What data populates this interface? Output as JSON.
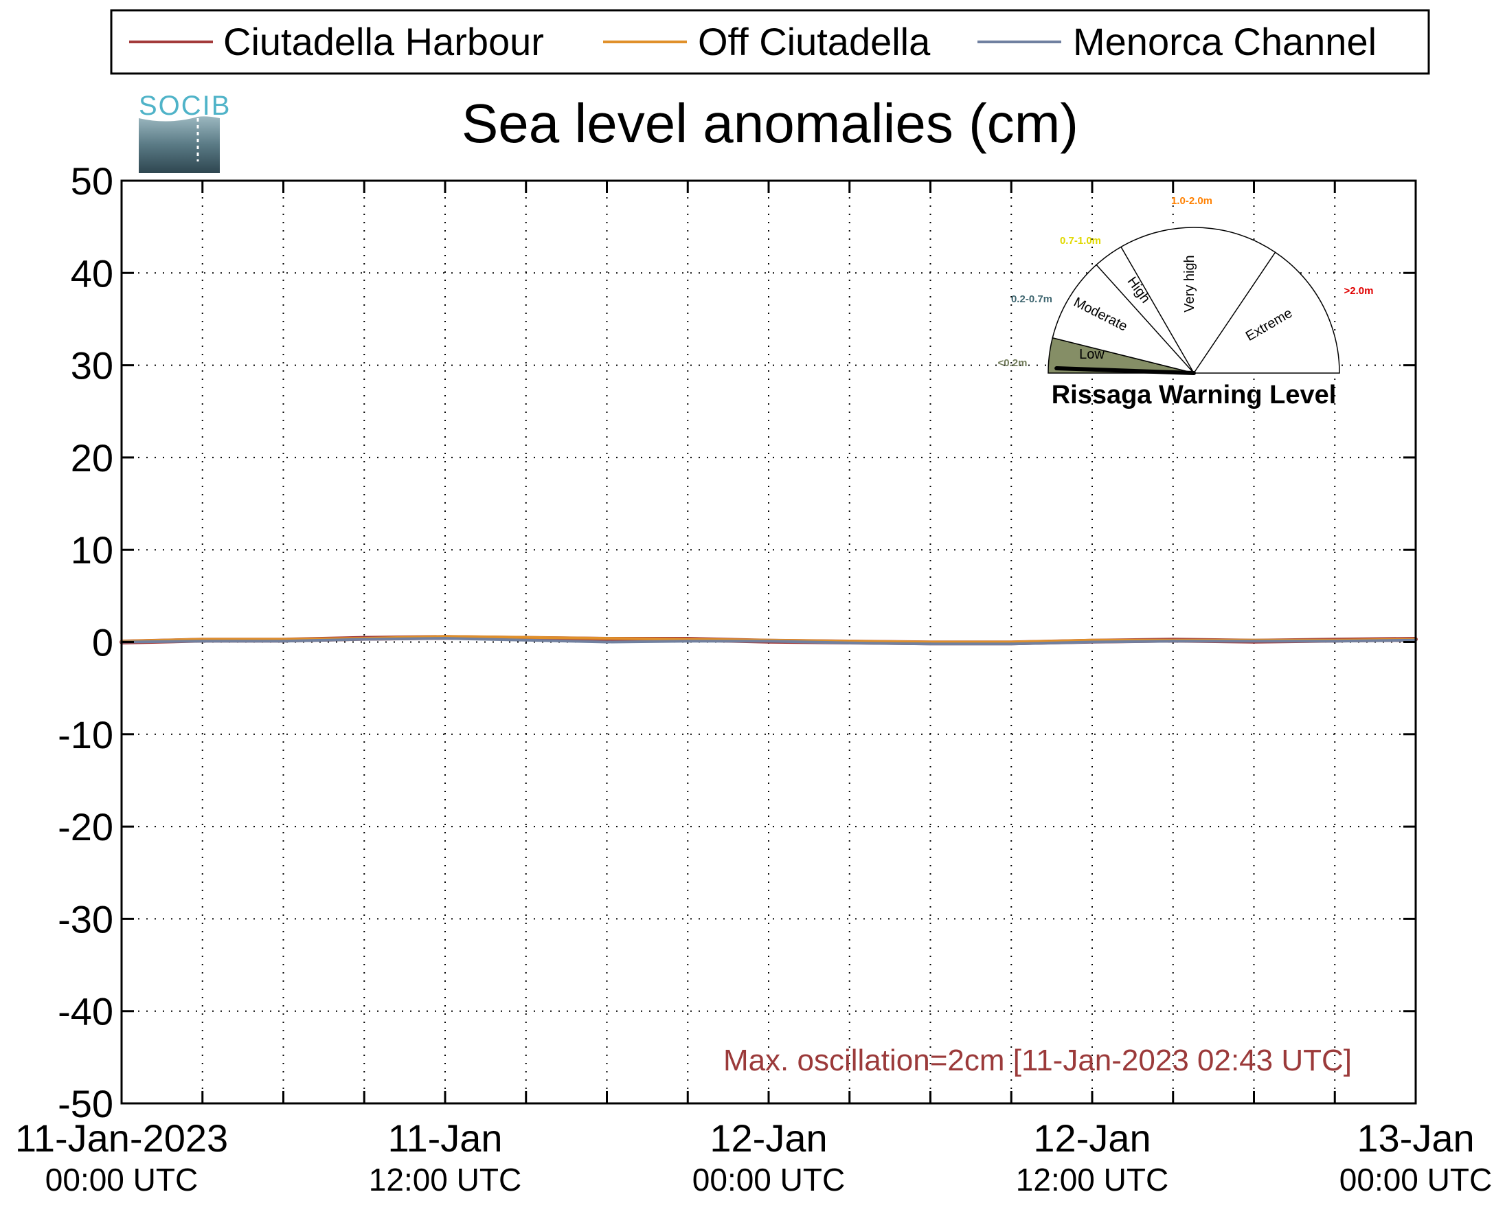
{
  "chart_data": {
    "type": "line",
    "title": "Sea level anomalies (cm)",
    "logo_text": "SOCIB",
    "xlabel": "",
    "ylabel": "",
    "ylim": [
      -50,
      50
    ],
    "yticks": [
      50,
      40,
      30,
      20,
      10,
      0,
      -10,
      -20,
      -30,
      -40,
      -50
    ],
    "xlim": [
      "2023-01-11T00:00Z",
      "2023-01-13T00:00Z"
    ],
    "xtick_labels": [
      {
        "date": "2023-01-11T00:00Z",
        "line1": "11-Jan-2023",
        "line2": "00:00 UTC"
      },
      {
        "date": "2023-01-11T12:00Z",
        "line1": "11-Jan",
        "line2": "12:00 UTC"
      },
      {
        "date": "2023-01-12T00:00Z",
        "line1": "12-Jan",
        "line2": "00:00 UTC"
      },
      {
        "date": "2023-01-12T12:00Z",
        "line1": "12-Jan",
        "line2": "12:00 UTC"
      },
      {
        "date": "2023-01-13T00:00Z",
        "line1": "13-Jan",
        "line2": "00:00 UTC"
      }
    ],
    "grid": true,
    "legend_position": "top",
    "series": [
      {
        "name": "Ciutadella Harbour",
        "color": "#a33a3a",
        "x": [
          "2023-01-11T00:00Z",
          "2023-01-11T03:00Z",
          "2023-01-11T06:00Z",
          "2023-01-11T09:00Z",
          "2023-01-11T12:00Z",
          "2023-01-11T15:00Z",
          "2023-01-11T18:00Z",
          "2023-01-11T21:00Z",
          "2023-01-12T00:00Z",
          "2023-01-12T03:00Z",
          "2023-01-12T06:00Z",
          "2023-01-12T09:00Z",
          "2023-01-12T12:00Z",
          "2023-01-12T15:00Z",
          "2023-01-12T18:00Z",
          "2023-01-12T21:00Z",
          "2023-01-13T00:00Z"
        ],
        "y": [
          0.0,
          0.2,
          0.2,
          0.4,
          0.5,
          0.4,
          0.3,
          0.3,
          0.1,
          0.0,
          -0.1,
          -0.1,
          0.1,
          0.2,
          0.1,
          0.2,
          0.3
        ]
      },
      {
        "name": "Off Ciutadella",
        "color": "#e0902a",
        "x": [
          "2023-01-11T00:00Z",
          "2023-01-11T03:00Z",
          "2023-01-11T06:00Z",
          "2023-01-11T09:00Z",
          "2023-01-11T12:00Z",
          "2023-01-11T15:00Z",
          "2023-01-11T18:00Z",
          "2023-01-11T21:00Z",
          "2023-01-12T00:00Z",
          "2023-01-12T03:00Z",
          "2023-01-12T06:00Z",
          "2023-01-12T09:00Z",
          "2023-01-12T12:00Z",
          "2023-01-12T15:00Z",
          "2023-01-12T18:00Z",
          "2023-01-12T21:00Z",
          "2023-01-13T00:00Z"
        ],
        "y": [
          0.1,
          0.3,
          0.3,
          0.4,
          0.6,
          0.5,
          0.4,
          0.3,
          0.2,
          0.1,
          0.0,
          0.0,
          0.2,
          0.2,
          0.2,
          0.2,
          0.3
        ]
      },
      {
        "name": "Menorca Channel",
        "color": "#7080a0",
        "x": [
          "2023-01-11T00:00Z",
          "2023-01-11T03:00Z",
          "2023-01-11T06:00Z",
          "2023-01-11T09:00Z",
          "2023-01-11T12:00Z",
          "2023-01-11T15:00Z",
          "2023-01-11T18:00Z",
          "2023-01-11T21:00Z",
          "2023-01-12T00:00Z",
          "2023-01-12T03:00Z",
          "2023-01-12T06:00Z",
          "2023-01-12T09:00Z",
          "2023-01-12T12:00Z",
          "2023-01-12T15:00Z",
          "2023-01-12T18:00Z",
          "2023-01-12T21:00Z",
          "2023-01-13T00:00Z"
        ],
        "y": [
          0.0,
          0.1,
          0.1,
          0.3,
          0.4,
          0.2,
          0.0,
          0.1,
          0.1,
          -0.1,
          -0.2,
          -0.2,
          0.0,
          0.1,
          0.1,
          0.1,
          0.2
        ]
      }
    ],
    "annotation": {
      "text": "Max. oscillation=2cm [11-Jan-2023 02:43 UTC]",
      "color": "#9b3a3a"
    },
    "gauge": {
      "title": "Rissaga Warning Level",
      "current_level": "Low",
      "sectors": [
        {
          "label": "Low",
          "range": "<0.2m",
          "range_color": "#707a58",
          "fill": "#858e66"
        },
        {
          "label": "Moderate",
          "range": "0.2-0.7m",
          "range_color": "#3f6670",
          "fill": "#ffffff"
        },
        {
          "label": "High",
          "range": "0.7-1.0m",
          "range_color": "#e0d800",
          "fill": "#ffffff"
        },
        {
          "label": "Very high",
          "range": "1.0-2.0m",
          "range_color": "#ff8000",
          "fill": "#ffffff"
        },
        {
          "label": "Extreme",
          "range": ">2.0m",
          "range_color": "#e00000",
          "fill": "#ffffff"
        }
      ]
    }
  }
}
